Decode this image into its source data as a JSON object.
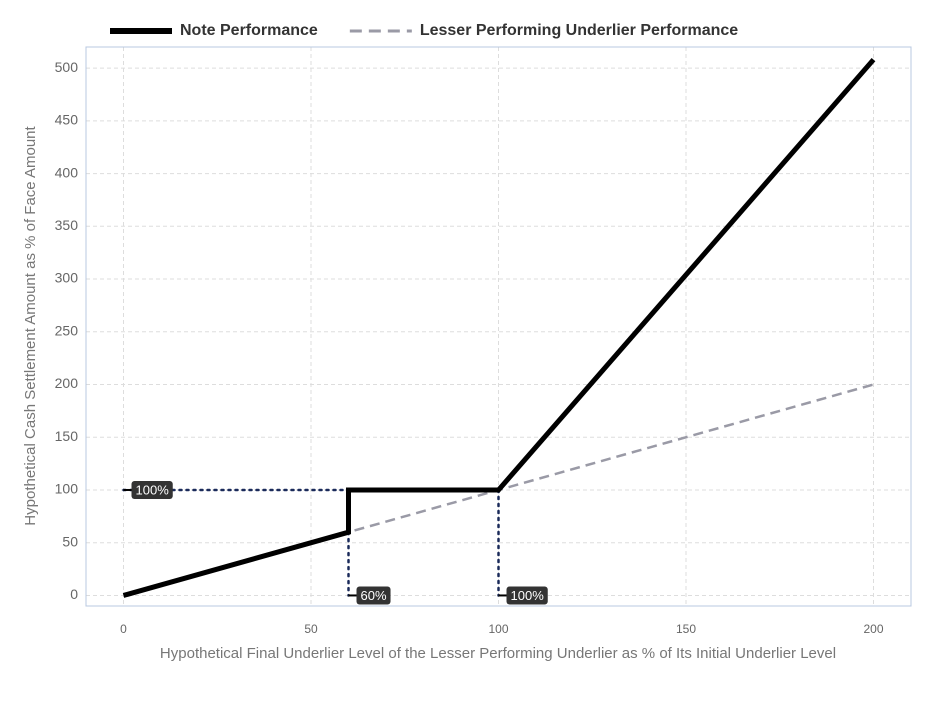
{
  "chart_data": {
    "type": "line",
    "xlabel": "Hypothetical Final Underlier Level of the Lesser Performing Underlier as % of Its Initial Underlier Level",
    "ylabel": "Hypothetical Cash Settlement Amount as % of Face Amount",
    "xlim": [
      -10,
      210
    ],
    "ylim": [
      -10,
      520
    ],
    "xticks": [
      0,
      50,
      100,
      150,
      200
    ],
    "yticks": [
      0,
      50,
      100,
      150,
      200,
      250,
      300,
      350,
      400,
      450,
      500
    ],
    "grid": true,
    "legend": "top",
    "series": [
      {
        "name": "Note Performance",
        "color": "#000000",
        "x": [
          0,
          60,
          60,
          100,
          200
        ],
        "values": [
          0,
          60,
          100,
          100,
          508
        ]
      },
      {
        "name": "Lesser Performing Underlier Performance",
        "color": "#9a9aa6",
        "x": [
          0,
          200
        ],
        "values": [
          0,
          200
        ],
        "dashed": true
      }
    ],
    "reference_lines": [
      {
        "x": [
          0,
          100
        ],
        "y": [
          100,
          100
        ]
      },
      {
        "x": [
          60,
          60
        ],
        "y": [
          60,
          0
        ]
      },
      {
        "x": [
          100,
          100
        ],
        "y": [
          100,
          0
        ]
      }
    ],
    "reference_color": "#1a2a5a",
    "annotations": [
      {
        "label": "100%",
        "x": 0,
        "y": 100
      },
      {
        "label": "60%",
        "x": 60,
        "y": 0
      },
      {
        "label": "100%",
        "x": 100,
        "y": 0
      }
    ]
  }
}
